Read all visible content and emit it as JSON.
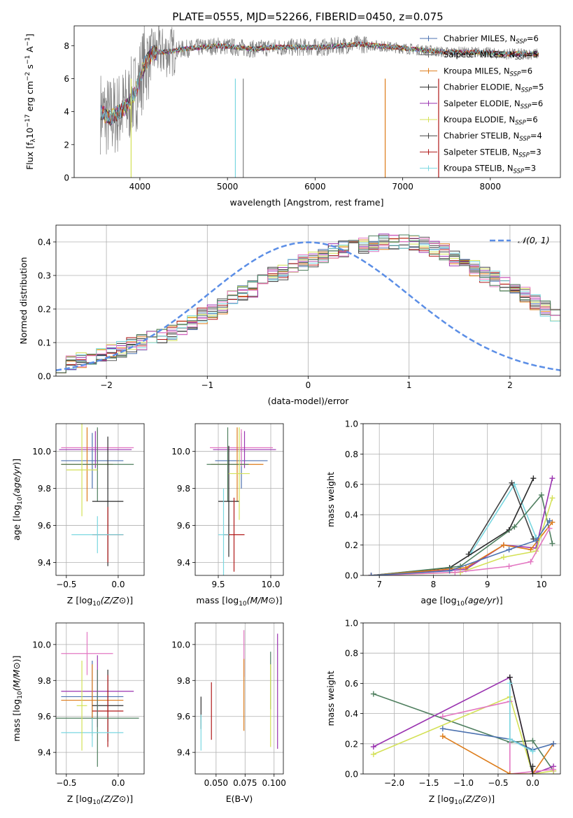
{
  "figure": {
    "title": "PLATE=0555, MJD=52266, FIBERID=0450, z=0.075"
  },
  "colors": {
    "Chabrier MILES": "#4c72b0",
    "Salpeter MILES": "#5f5f5f",
    "Kroupa MILES": "#dd7c1a",
    "Chabrier ELODIE": "#2c2c2c",
    "Salpeter ELODIE": "#9a33b0",
    "Kroupa ELODIE": "#d4e157",
    "Chabrier STELIB": "#444444",
    "Salpeter STELIB": "#b01818",
    "Kroupa STELIB": "#7ad7e0",
    "data": "#7f7f7f",
    "normal": "#5b8ee6",
    "pink": "#e377c2",
    "green": "#4f7f5f"
  },
  "chart_data": [
    {
      "id": "spectrum",
      "type": "line",
      "xlabel": "wavelength [Angstrom, rest frame]",
      "ylabel": "Flux [f_λ10^-17 erg cm^-2 s^-1 A^-1]",
      "xlim": [
        3250,
        8800
      ],
      "ylim": [
        0,
        9.2
      ],
      "xticks": [
        4000,
        5000,
        6000,
        7000,
        8000
      ],
      "yticks": [
        0,
        2,
        4,
        6,
        8
      ],
      "grid": false,
      "legend_position": "right",
      "legend": [
        {
          "label": "Chabrier MILES, N_SSP=6",
          "main": "Chabrier MILES, N",
          "sub": "SSP",
          "tail": "=6",
          "color": "#4c72b0"
        },
        {
          "label": "Salpeter MILES, N_SSP=5",
          "main": "Salpeter MILES, N",
          "sub": "SSP",
          "tail": "=5",
          "color": "#5f5f5f"
        },
        {
          "label": "Kroupa MILES, N_SSP=6",
          "main": "Kroupa MILES, N",
          "sub": "SSP",
          "tail": "=6",
          "color": "#dd7c1a"
        },
        {
          "label": "Chabrier ELODIE, N_SSP=5",
          "main": "Chabrier ELODIE, N",
          "sub": "SSP",
          "tail": "=5",
          "color": "#2c2c2c"
        },
        {
          "label": "Salpeter ELODIE, N_SSP=6",
          "main": "Salpeter ELODIE, N",
          "sub": "SSP",
          "tail": "=6",
          "color": "#9a33b0"
        },
        {
          "label": "Kroupa ELODIE, N_SSP=6",
          "main": "Kroupa ELODIE, N",
          "sub": "SSP",
          "tail": "=6",
          "color": "#d4e157"
        },
        {
          "label": "Chabrier STELIB, N_SSP=4",
          "main": "Chabrier STELIB, N",
          "sub": "SSP",
          "tail": "=4",
          "color": "#444444"
        },
        {
          "label": "Salpeter STELIB, N_SSP=3",
          "main": "Salpeter STELIB, N",
          "sub": "SSP",
          "tail": "=3",
          "color": "#b01818"
        },
        {
          "label": "Kroupa STELIB, N_SSP=3",
          "main": "Kroupa STELIB, N",
          "sub": "SSP",
          "tail": "=3",
          "color": "#7ad7e0"
        }
      ],
      "continuum": {
        "x": [
          3550,
          3650,
          3750,
          3850,
          3950,
          4050,
          4150,
          4300,
          4500,
          4700,
          4900,
          5100,
          5300,
          5500,
          5700,
          5900,
          6100,
          6300,
          6500,
          6700,
          6900,
          7100,
          7300,
          7500,
          7700,
          7900,
          8100,
          8300,
          8500
        ],
        "y": [
          4.0,
          3.6,
          3.9,
          4.3,
          5.2,
          6.8,
          7.6,
          7.6,
          7.8,
          7.9,
          8.0,
          7.9,
          7.8,
          7.9,
          7.9,
          7.9,
          7.9,
          8.0,
          8.1,
          8.0,
          7.9,
          7.8,
          7.7,
          7.6,
          7.6,
          7.6,
          7.5,
          7.5,
          7.5
        ]
      }
    },
    {
      "id": "residuals",
      "type": "histogram",
      "xlabel": "(data-model)/error",
      "ylabel": "Normed distribution",
      "xlim": [
        -2.5,
        2.5
      ],
      "ylim": [
        0,
        0.45
      ],
      "xticks": [
        -2,
        -1,
        0,
        1,
        2
      ],
      "yticks": [
        0.0,
        0.1,
        0.2,
        0.3,
        0.4
      ],
      "grid": true,
      "legend": "𝒩(0, 1)",
      "bin_edges_start": -2.5,
      "bin_width": 0.1,
      "base_histogram": [
        0.035,
        0.04,
        0.05,
        0.055,
        0.06,
        0.07,
        0.08,
        0.09,
        0.1,
        0.11,
        0.12,
        0.13,
        0.14,
        0.16,
        0.18,
        0.19,
        0.21,
        0.23,
        0.25,
        0.26,
        0.28,
        0.3,
        0.31,
        0.33,
        0.34,
        0.35,
        0.36,
        0.37,
        0.38,
        0.385,
        0.39,
        0.395,
        0.4,
        0.4,
        0.405,
        0.4,
        0.39,
        0.38,
        0.37,
        0.35,
        0.34,
        0.32,
        0.3,
        0.29,
        0.27,
        0.26,
        0.24,
        0.22,
        0.2,
        0.18,
        0.16,
        0.14,
        0.12,
        0.11,
        0.09,
        0.08,
        0.07,
        0.06,
        0.05,
        0.045,
        0.04,
        0.035,
        0.03,
        0.03,
        0.025,
        0.025,
        0.03,
        0.035,
        0.03,
        0.03
      ]
    },
    {
      "id": "age_vs_Z",
      "type": "scatter",
      "xlabel": "Z [log10(Z/Z⊙)]",
      "ylabel": "age  [log10(age/yr)]",
      "xlim": [
        -0.6,
        0.25
      ],
      "ylim": [
        9.33,
        10.15
      ],
      "xticks": [
        -0.5,
        0.0
      ],
      "yticks": [
        9.4,
        9.6,
        9.8,
        10.0
      ],
      "grid": true,
      "points": [
        {
          "x": -0.25,
          "y": 9.95,
          "xerr": 0.3,
          "yerr": 0.15,
          "color": "#4c72b0"
        },
        {
          "x": -0.2,
          "y": 10.02,
          "xerr": 0.35,
          "yerr": 0.1,
          "color": "#e377c2"
        },
        {
          "x": -0.22,
          "y": 10.01,
          "xerr": 0.35,
          "yerr": 0.1,
          "color": "#9a33b0"
        },
        {
          "x": -0.3,
          "y": 9.93,
          "xerr": 0.25,
          "yerr": 0.2,
          "color": "#dd7c1a"
        },
        {
          "x": -0.2,
          "y": 9.93,
          "xerr": 0.35,
          "yerr": 0.2,
          "color": "#4f7f5f"
        },
        {
          "x": -0.1,
          "y": 9.73,
          "xerr": 0.15,
          "yerr": 0.35,
          "color": "#2c2c2c"
        },
        {
          "x": -0.1,
          "y": 9.55,
          "xerr": 0.15,
          "yerr": 0.15,
          "color": "#b01818"
        },
        {
          "x": -0.2,
          "y": 9.55,
          "xerr": 0.25,
          "yerr": 0.1,
          "color": "#7ad7e0"
        },
        {
          "x": -0.35,
          "y": 9.9,
          "xerr": 0.15,
          "yerr": 0.25,
          "color": "#d4e157"
        }
      ]
    },
    {
      "id": "age_vs_mass",
      "type": "scatter",
      "xlabel": "mass [log10(M/M⊙)]",
      "ylabel": "",
      "xlim": [
        9.28,
        10.12
      ],
      "ylim": [
        9.33,
        10.15
      ],
      "xticks": [
        9.5,
        10.0
      ],
      "yticks": [
        9.4,
        9.6,
        9.8,
        10.0
      ],
      "grid": true,
      "points": [
        {
          "x": 9.72,
          "y": 9.95,
          "xerr": 0.25,
          "yerr": 0.15,
          "color": "#4c72b0"
        },
        {
          "x": 9.72,
          "y": 10.02,
          "xerr": 0.3,
          "yerr": 0.1,
          "color": "#e377c2"
        },
        {
          "x": 9.75,
          "y": 10.01,
          "xerr": 0.3,
          "yerr": 0.1,
          "color": "#9a33b0"
        },
        {
          "x": 9.68,
          "y": 9.93,
          "xerr": 0.25,
          "yerr": 0.2,
          "color": "#dd7c1a"
        },
        {
          "x": 9.59,
          "y": 9.93,
          "xerr": 0.2,
          "yerr": 0.2,
          "color": "#4f7f5f"
        },
        {
          "x": 9.6,
          "y": 9.73,
          "xerr": 0.1,
          "yerr": 0.3,
          "color": "#2c2c2c"
        },
        {
          "x": 9.65,
          "y": 9.55,
          "xerr": 0.1,
          "yerr": 0.2,
          "color": "#b01818"
        },
        {
          "x": 9.55,
          "y": 9.55,
          "xerr": 0.05,
          "yerr": 0.25,
          "color": "#7ad7e0"
        },
        {
          "x": 9.7,
          "y": 9.88,
          "xerr": 0.1,
          "yerr": 0.25,
          "color": "#d4e157"
        }
      ]
    },
    {
      "id": "weight_vs_age",
      "type": "line",
      "xlabel": "age  [log10(age/yr)]",
      "ylabel": "mass weight",
      "xlim": [
        6.7,
        10.35
      ],
      "ylim": [
        0,
        1.0
      ],
      "xticks": [
        7,
        8,
        9,
        10
      ],
      "yticks": [
        0.0,
        0.2,
        0.4,
        0.6,
        0.8,
        1.0
      ],
      "grid": true,
      "series": [
        {
          "color": "#7ad7e0",
          "x": [
            8.7,
            9.5,
            9.9
          ],
          "y": [
            0.15,
            0.6,
            0.25
          ]
        },
        {
          "color": "#444444",
          "x": [
            8.65,
            9.45,
            9.85
          ],
          "y": [
            0.14,
            0.61,
            0.24
          ]
        },
        {
          "color": "#2c2c2c",
          "x": [
            6.85,
            8.3,
            9.4,
            9.85
          ],
          "y": [
            0.0,
            0.05,
            0.3,
            0.64
          ]
        },
        {
          "color": "#4f7f5f",
          "x": [
            6.85,
            8.5,
            9.5,
            10.0,
            10.2
          ],
          "y": [
            0.0,
            0.06,
            0.32,
            0.53,
            0.21
          ]
        },
        {
          "color": "#9a33b0",
          "x": [
            6.85,
            8.6,
            9.3,
            9.9,
            10.2
          ],
          "y": [
            0.0,
            0.04,
            0.2,
            0.18,
            0.64
          ]
        },
        {
          "color": "#dd7c1a",
          "x": [
            6.85,
            8.6,
            9.3,
            9.8,
            10.2
          ],
          "y": [
            0.0,
            0.05,
            0.2,
            0.17,
            0.35
          ]
        },
        {
          "color": "#d4e157",
          "x": [
            6.85,
            8.5,
            9.3,
            9.9,
            10.2
          ],
          "y": [
            0.0,
            0.02,
            0.12,
            0.16,
            0.51
          ]
        },
        {
          "color": "#e377c2",
          "x": [
            6.85,
            8.4,
            9.4,
            9.8,
            10.15
          ],
          "y": [
            0.0,
            0.02,
            0.06,
            0.09,
            0.31
          ]
        },
        {
          "color": "#4c72b0",
          "x": [
            6.85,
            8.3,
            9.4,
            9.9,
            10.15
          ],
          "y": [
            0.0,
            0.03,
            0.17,
            0.23,
            0.36
          ]
        }
      ]
    },
    {
      "id": "mass_vs_Z",
      "type": "scatter",
      "xlabel": "Z [log10(Z/Z⊙)]",
      "ylabel": "mass [log10(M/M⊙)]",
      "xlim": [
        -0.6,
        0.25
      ],
      "ylim": [
        9.28,
        10.12
      ],
      "xticks": [
        -0.5,
        0.0
      ],
      "yticks": [
        9.4,
        9.6,
        9.8,
        10.0
      ],
      "grid": true,
      "points": [
        {
          "x": -0.3,
          "y": 9.95,
          "xerr": 0.25,
          "yerr": 0.12,
          "color": "#e377c2"
        },
        {
          "x": -0.2,
          "y": 9.74,
          "xerr": 0.35,
          "yerr": 0.2,
          "color": "#9a33b0"
        },
        {
          "x": -0.25,
          "y": 9.71,
          "xerr": 0.3,
          "yerr": 0.2,
          "color": "#4c72b0"
        },
        {
          "x": -0.25,
          "y": 9.69,
          "xerr": 0.3,
          "yerr": 0.2,
          "color": "#dd7c1a"
        },
        {
          "x": -0.1,
          "y": 9.66,
          "xerr": 0.15,
          "yerr": 0.2,
          "color": "#2c2c2c"
        },
        {
          "x": -0.1,
          "y": 9.63,
          "xerr": 0.15,
          "yerr": 0.2,
          "color": "#b01818"
        },
        {
          "x": -0.2,
          "y": 9.59,
          "xerr": 0.4,
          "yerr": 0.27,
          "color": "#4f7f5f"
        },
        {
          "x": -0.25,
          "y": 9.51,
          "xerr": 0.3,
          "yerr": 0.08,
          "color": "#7ad7e0"
        },
        {
          "x": -0.35,
          "y": 9.66,
          "xerr": 0.05,
          "yerr": 0.25,
          "color": "#d4e157"
        }
      ]
    },
    {
      "id": "mass_vs_ebv",
      "type": "scatter",
      "xlabel": "E(B-V)",
      "ylabel": "",
      "xlim": [
        0.032,
        0.108
      ],
      "ylim": [
        9.28,
        10.12
      ],
      "xticks": [
        0.05,
        0.075,
        0.1
      ],
      "xticklabels": [
        "0.050",
        "0.075",
        "0.100"
      ],
      "yticks": [
        9.4,
        9.6,
        9.8,
        10.0
      ],
      "grid": true,
      "points": [
        {
          "x": 0.037,
          "y": 9.62,
          "yerr": 0.09,
          "color": "#2c2c2c"
        },
        {
          "x": 0.037,
          "y": 9.51,
          "yerr": 0.1,
          "color": "#7ad7e0"
        },
        {
          "x": 0.046,
          "y": 9.63,
          "yerr": 0.16,
          "color": "#b01818"
        },
        {
          "x": 0.074,
          "y": 9.95,
          "yerr": 0.13,
          "color": "#e377c2"
        },
        {
          "x": 0.074,
          "y": 9.72,
          "yerr": 0.2,
          "color": "#dd7c1a"
        },
        {
          "x": 0.097,
          "y": 9.8,
          "yerr": 0.16,
          "color": "#4f7f5f"
        },
        {
          "x": 0.097,
          "y": 9.66,
          "yerr": 0.23,
          "color": "#d4e157"
        },
        {
          "x": 0.103,
          "y": 9.74,
          "yerr": 0.32,
          "color": "#9a33b0"
        }
      ]
    },
    {
      "id": "weight_vs_Z",
      "type": "line",
      "xlabel": "Z [log10(Z/Z⊙)]",
      "ylabel": "mass weight",
      "xlim": [
        -2.45,
        0.4
      ],
      "ylim": [
        0,
        1.0
      ],
      "xticks": [
        -2.0,
        -1.5,
        -1.0,
        -0.5,
        0.0
      ],
      "yticks": [
        0.0,
        0.2,
        0.4,
        0.6,
        0.8,
        1.0
      ],
      "grid": true,
      "series": [
        {
          "color": "#4f7f5f",
          "x": [
            -2.3,
            -0.33,
            0.0,
            0.3
          ],
          "y": [
            0.53,
            0.21,
            0.22,
            0.02
          ]
        },
        {
          "color": "#9a33b0",
          "x": [
            -2.3,
            -0.33,
            0.0,
            0.3
          ],
          "y": [
            0.18,
            0.64,
            0.0,
            0.05
          ]
        },
        {
          "color": "#d4e157",
          "x": [
            -2.3,
            -0.33,
            0.0,
            0.3
          ],
          "y": [
            0.13,
            0.51,
            0.0,
            0.02
          ]
        },
        {
          "color": "#e377c2",
          "x": [
            -1.3,
            -0.33,
            -0.33,
            0.3
          ],
          "y": [
            0.38,
            0.48,
            0.0,
            0.03
          ]
        },
        {
          "color": "#dd7c1a",
          "x": [
            -1.3,
            -0.33,
            0.0,
            0.3
          ],
          "y": [
            0.25,
            0.0,
            0.0,
            0.2
          ]
        },
        {
          "color": "#4c72b0",
          "x": [
            -1.3,
            -0.33,
            0.0,
            0.3
          ],
          "y": [
            0.3,
            0.23,
            0.16,
            0.2
          ]
        },
        {
          "color": "#2c2c2c",
          "x": [
            -0.33,
            0.0,
            0.0
          ],
          "y": [
            0.64,
            0.0,
            0.05
          ]
        },
        {
          "color": "#7ad7e0",
          "x": [
            -0.33,
            -0.33,
            0.0
          ],
          "y": [
            0.6,
            0.23,
            0.15
          ]
        }
      ]
    }
  ]
}
